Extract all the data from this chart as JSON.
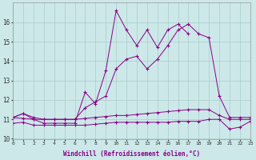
{
  "xlabel": "Windchill (Refroidissement éolien,°C)",
  "background_color": "#cce8e8",
  "grid_color": "#aacccc",
  "line_color": "#880088",
  "hours": [
    0,
    1,
    2,
    3,
    4,
    5,
    6,
    7,
    8,
    9,
    10,
    11,
    12,
    13,
    14,
    15,
    16,
    17,
    18,
    19,
    20,
    21,
    22,
    23
  ],
  "line1_bottom": [
    10.8,
    10.85,
    10.7,
    10.7,
    10.7,
    10.7,
    10.7,
    10.7,
    10.75,
    10.8,
    10.85,
    10.85,
    10.85,
    10.85,
    10.85,
    10.85,
    10.9,
    10.9,
    10.9,
    11.0,
    11.0,
    10.5,
    10.6,
    10.9
  ],
  "line2_flat": [
    11.1,
    11.05,
    11.0,
    11.0,
    11.0,
    11.0,
    11.0,
    11.05,
    11.1,
    11.15,
    11.2,
    11.2,
    11.25,
    11.3,
    11.35,
    11.4,
    11.45,
    11.5,
    11.5,
    11.5,
    11.2,
    11.0,
    11.0,
    11.0
  ],
  "line3_curve": [
    11.1,
    11.3,
    11.1,
    11.0,
    11.0,
    11.0,
    11.0,
    11.6,
    11.9,
    12.2,
    13.6,
    14.1,
    14.25,
    13.6,
    14.1,
    14.8,
    15.6,
    15.9,
    15.4,
    15.2,
    12.2,
    11.1,
    11.1,
    11.1
  ],
  "line4_spike": [
    11.1,
    11.3,
    11.0,
    10.8,
    10.8,
    10.8,
    10.8,
    12.4,
    11.8,
    13.5,
    16.6,
    15.6,
    14.8,
    15.6,
    14.7,
    15.6,
    15.9,
    15.4,
    null,
    null,
    null,
    null,
    null,
    null
  ],
  "ylim": [
    10.0,
    17.0
  ],
  "yticks": [
    10,
    11,
    12,
    13,
    14,
    15,
    16
  ],
  "xlim": [
    0,
    23
  ],
  "figsize": [
    3.2,
    2.0
  ],
  "dpi": 100
}
